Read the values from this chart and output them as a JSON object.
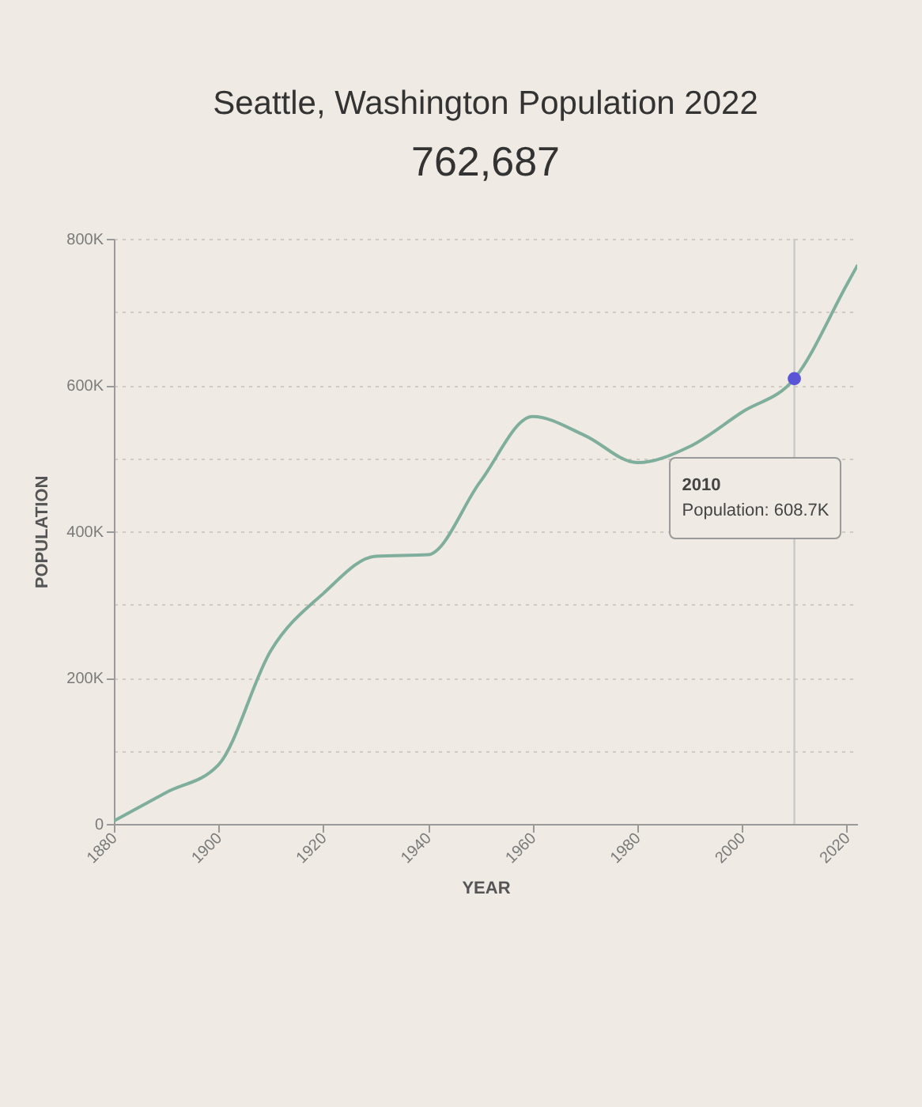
{
  "chart_data": {
    "type": "line",
    "title": "Seattle, Washington Population 2022",
    "subtitle": "762,687",
    "xlabel": "YEAR",
    "ylabel": "POPULATION",
    "series": [
      {
        "color": "#7fae9d",
        "x": [
          1880,
          1890,
          1900,
          1910,
          1920,
          1930,
          1940,
          1950,
          1960,
          1970,
          1980,
          1990,
          2000,
          2010,
          2020,
          2022
        ],
        "values": [
          4000,
          43000,
          81000,
          237000,
          315000,
          366000,
          368000,
          468000,
          557000,
          531000,
          494000,
          516000,
          563000,
          608700,
          737000,
          763000
        ]
      },
      {
        "type": "scatter",
        "color": "#5b53d6",
        "marker": "circle",
        "x": [
          2010
        ],
        "values": [
          608700
        ]
      }
    ],
    "xlim": [
      1880,
      2022
    ],
    "xticks": [
      1880,
      1900,
      1920,
      1940,
      1960,
      1980,
      2000,
      2020
    ],
    "ylim": [
      0,
      800000
    ],
    "yticks": [
      0,
      {
        "value": 100000,
        "label": null
      },
      {
        "value": 200000,
        "label": "200K"
      },
      {
        "value": 300000,
        "label": null
      },
      {
        "value": 400000,
        "label": "400K"
      },
      {
        "value": 500000,
        "label": null
      },
      {
        "value": 600000,
        "label": "600K"
      },
      {
        "value": 700000,
        "label": null
      },
      {
        "value": 800000,
        "label": "800K"
      }
    ],
    "grid": "y",
    "ref_lines": [
      {
        "axis": "x",
        "value": 2010,
        "color": "#c8c8c8"
      }
    ],
    "annotations": [
      "2010\nPopulation: 608.7K"
    ]
  }
}
